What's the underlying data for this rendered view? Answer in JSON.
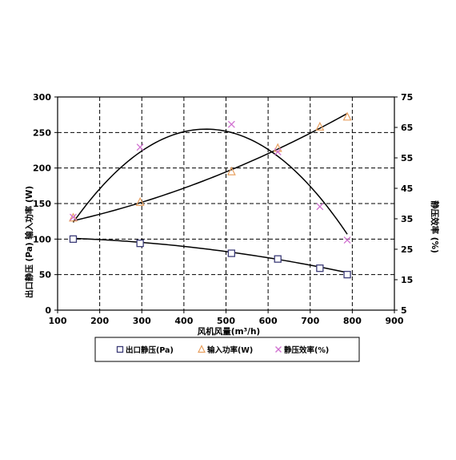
{
  "chart_data": {
    "type": "scatter",
    "title": "",
    "xlabel": "风机风量(m³/h)",
    "ylabel_left": "出口静压 (Pa) 输入功率 (W)",
    "ylabel_right": "静压效率 (%)",
    "xlim": [
      100,
      900
    ],
    "ylim_left": [
      0,
      300
    ],
    "ylim_right": [
      5,
      75
    ],
    "x_ticks": [
      "100",
      "200",
      "300",
      "400",
      "500",
      "600",
      "700",
      "800",
      "900"
    ],
    "y_ticks_left": [
      "0",
      "50",
      "100",
      "150",
      "200",
      "250",
      "300"
    ],
    "y_ticks_right": [
      "5",
      "15",
      "25",
      "35",
      "45",
      "55",
      "65",
      "75"
    ],
    "grid": true,
    "legend_position": "bottom",
    "series": [
      {
        "name": "出口静压(Pa)",
        "axis": "left",
        "marker": "square",
        "color": "#3c3c78",
        "x": [
          137,
          296,
          513,
          623,
          723,
          788
        ],
        "y": [
          100,
          94,
          80,
          72,
          59,
          50
        ]
      },
      {
        "name": "输入功率(W)",
        "axis": "left",
        "marker": "triangle",
        "color": "#e8a060",
        "x": [
          137,
          296,
          513,
          623,
          723,
          788
        ],
        "y": [
          130,
          152,
          195,
          228,
          258,
          272
        ]
      },
      {
        "name": "静压效率(%)",
        "axis": "right",
        "marker": "x",
        "color": "#d070d0",
        "x": [
          137,
          296,
          513,
          623,
          723,
          788
        ],
        "y": [
          35.5,
          58.5,
          66,
          57,
          39,
          28
        ]
      }
    ],
    "trendlines": [
      {
        "series": "出口静压(Pa)",
        "axis": "left",
        "coef": [
          102.5,
          0.0,
          -8e-05
        ]
      },
      {
        "series": "输入功率(W)",
        "axis": "left",
        "coef": [
          110.0,
          0.095,
          0.000148
        ]
      },
      {
        "series": "静压效率(%)",
        "axis": "right",
        "coef": [
          1.5,
          0.278,
          -0.000307
        ]
      }
    ]
  }
}
